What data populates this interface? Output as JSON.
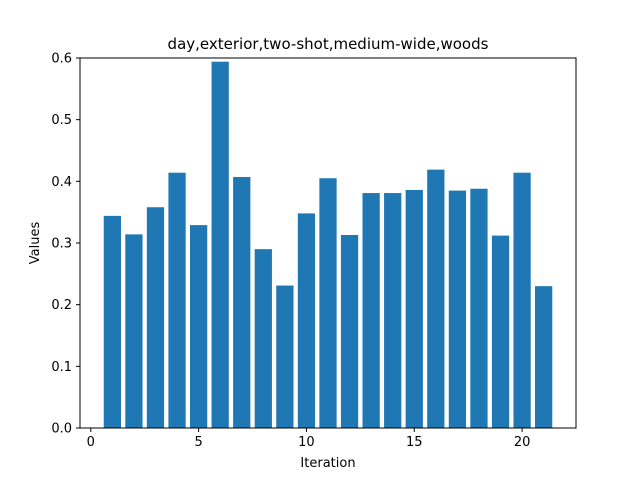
{
  "chart_data": {
    "type": "bar",
    "title": "day,exterior,two-shot,medium-wide,woods",
    "xlabel": "Iteration",
    "ylabel": "Values",
    "x": [
      1,
      2,
      3,
      4,
      5,
      6,
      7,
      8,
      9,
      10,
      11,
      12,
      13,
      14,
      15,
      16,
      17,
      18,
      19,
      20,
      21
    ],
    "values": [
      0.344,
      0.314,
      0.358,
      0.414,
      0.329,
      0.594,
      0.407,
      0.29,
      0.231,
      0.348,
      0.405,
      0.313,
      0.381,
      0.381,
      0.386,
      0.419,
      0.385,
      0.388,
      0.312,
      0.414,
      0.23
    ],
    "xlim": [
      -0.5,
      22.5
    ],
    "ylim": [
      0.0,
      0.6
    ],
    "xticks": [
      0,
      5,
      10,
      15,
      20
    ],
    "yticks": [
      0.0,
      0.1,
      0.2,
      0.3,
      0.4,
      0.5,
      0.6
    ],
    "xtick_labels": [
      "0",
      "5",
      "10",
      "15",
      "20"
    ],
    "ytick_labels": [
      "0.0",
      "0.1",
      "0.2",
      "0.3",
      "0.4",
      "0.5",
      "0.6"
    ],
    "bar_color": "#1f77b4",
    "grid": false,
    "legend": "none"
  }
}
